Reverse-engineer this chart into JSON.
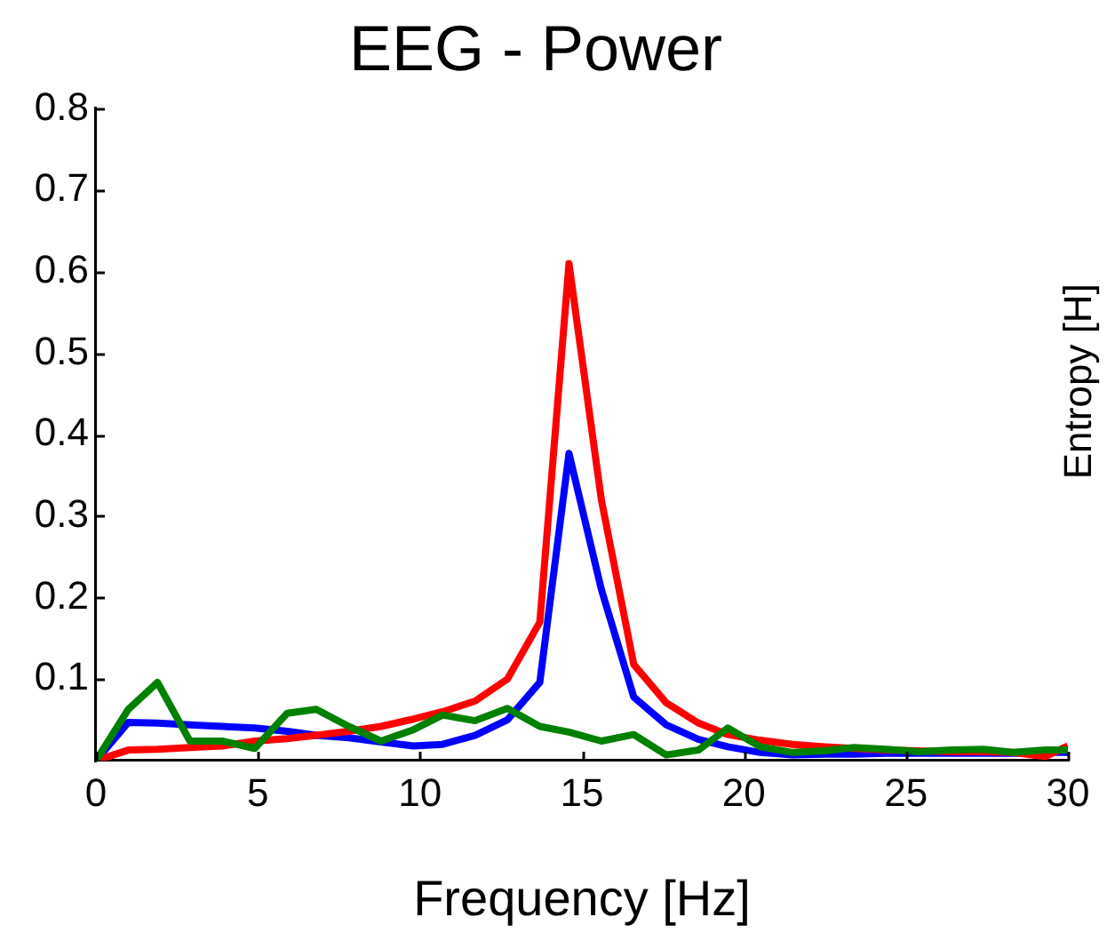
{
  "chart_data": {
    "type": "line",
    "title": "EEG - Power",
    "xlabel": "Frequency [Hz]",
    "annotations": [
      "Entropy [H]"
    ],
    "x": [
      0,
      1,
      1.9,
      2.9,
      3.9,
      4.9,
      5.9,
      6.8,
      7.8,
      8.8,
      9.8,
      10.7,
      11.7,
      12.7,
      13.7,
      14.6,
      15.6,
      16.6,
      17.6,
      18.6,
      19.5,
      20.5,
      21.5,
      22.5,
      23.4,
      24.4,
      25.4,
      26.4,
      27.4,
      28.3,
      29.3,
      30
    ],
    "series": [
      {
        "color": "#008000",
        "values": [
          0,
          0.063,
          0.096,
          0.024,
          0.024,
          0.015,
          0.058,
          0.063,
          0.042,
          0.024,
          0.038,
          0.056,
          0.049,
          0.064,
          0.042,
          0.035,
          0.024,
          0.032,
          0.007,
          0.013,
          0.04,
          0.017,
          0.01,
          0.012,
          0.016,
          0.014,
          0.011,
          0.013,
          0.014,
          0.01,
          0.013,
          0.013
        ]
      },
      {
        "color": "#ff0000",
        "values": [
          0,
          0.013,
          0.014,
          0.016,
          0.018,
          0.024,
          0.027,
          0.031,
          0.036,
          0.042,
          0.051,
          0.06,
          0.073,
          0.1,
          0.17,
          0.61,
          0.32,
          0.118,
          0.071,
          0.046,
          0.032,
          0.025,
          0.02,
          0.017,
          0.015,
          0.013,
          0.012,
          0.011,
          0.011,
          0.01,
          0.005,
          0.018
        ]
      },
      {
        "color": "#0000ff",
        "values": [
          0,
          0.047,
          0.046,
          0.044,
          0.042,
          0.04,
          0.036,
          0.031,
          0.028,
          0.023,
          0.018,
          0.02,
          0.031,
          0.05,
          0.096,
          0.377,
          0.21,
          0.078,
          0.044,
          0.026,
          0.017,
          0.01,
          0.007,
          0.008,
          0.008,
          0.009,
          0.009,
          0.009,
          0.009,
          0.009,
          0.01,
          0.01
        ]
      }
    ],
    "xlim": [
      0,
      30
    ],
    "xticks": [
      0,
      5,
      10,
      15,
      20,
      25,
      30
    ],
    "ylim": [
      0,
      0.8
    ],
    "yticks": [
      0.1,
      0.2,
      0.3,
      0.4,
      0.5,
      0.6,
      0.7,
      0.8
    ],
    "grid": false,
    "legend": false,
    "marker": "none",
    "line_style": "solid"
  }
}
